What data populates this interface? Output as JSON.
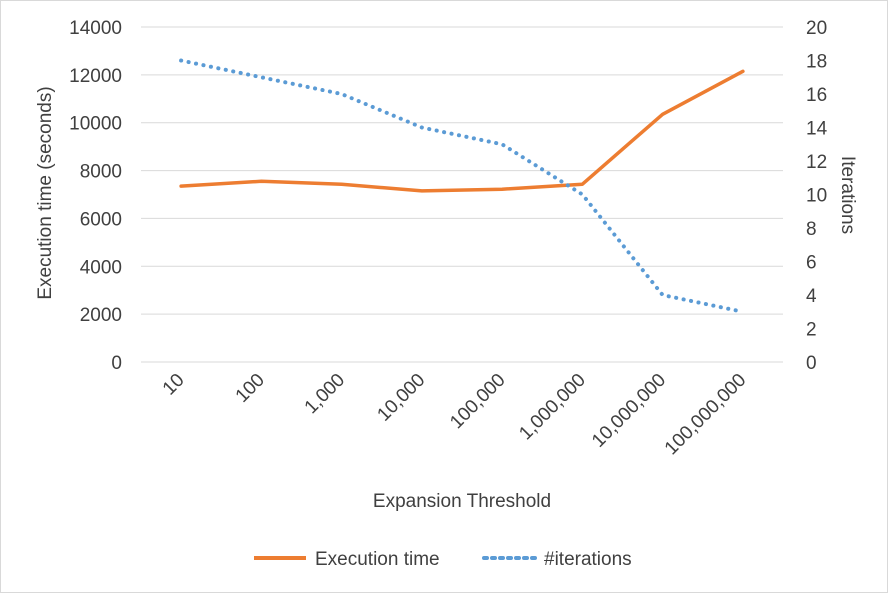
{
  "chart_data": {
    "type": "line",
    "title": "",
    "categories": [
      "10",
      "100",
      "1,000",
      "10,000",
      "100,000",
      "1,000,000",
      "10,000,000",
      "100,000,000"
    ],
    "xlabel": "Expansion Threshold",
    "ylabel": "Execution time (seconds)",
    "y2label": "Iterations",
    "ylim": [
      0,
      14000
    ],
    "yticks": [
      "0",
      "2000",
      "4000",
      "6000",
      "8000",
      "10000",
      "12000",
      "14000"
    ],
    "y2lim": [
      0,
      20
    ],
    "y2ticks": [
      "0",
      "2",
      "4",
      "6",
      "8",
      "10",
      "12",
      "14",
      "16",
      "18",
      "20"
    ],
    "grid": true,
    "legend_position": "bottom",
    "series": [
      {
        "name": "Execution time",
        "axis": "left",
        "style": "solid",
        "color": "#ed7d31",
        "values": [
          7350,
          7550,
          7430,
          7150,
          7220,
          7430,
          10350,
          12150
        ]
      },
      {
        "name": "#iterations",
        "axis": "right",
        "style": "dotted",
        "color": "#5b9bd5",
        "values": [
          18,
          17,
          16,
          14,
          13,
          10,
          4,
          3
        ]
      }
    ]
  }
}
